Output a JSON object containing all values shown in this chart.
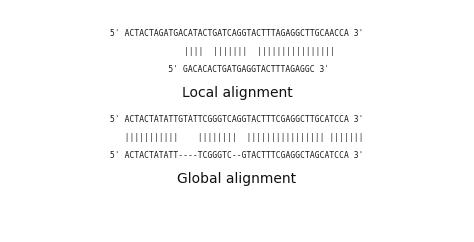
{
  "background_color": "#ffffff",
  "local_lines": [
    "5' ACTACTAGATGACATACTGATCAGGTACTTTAGAGGCTTGCAACCA 3'",
    "         ||||  |||||||  ||||||||||||||||",
    "     5' GACACACTGATGAGGTACTTTAGAGGC 3'"
  ],
  "local_label": "Local alignment",
  "global_lines": [
    "5' ACTACTATATTGTATTCGGGTCAGGTACTTTCGAGGCTTGCATCCA 3'",
    "   |||||||||||    ||||||||  |||||||||||||||| |||||||",
    "5' ACTACTATATT----TCGGGTC--GTACTTTCGAGGCTAGCATCCA 3'"
  ],
  "global_label": "Global alignment",
  "mono_fontsize": 5.8,
  "label_fontsize": 10.0,
  "text_color": "#1a1a1a",
  "label_color": "#111111",
  "figsize": [
    4.74,
    2.42
  ],
  "dpi": 100
}
